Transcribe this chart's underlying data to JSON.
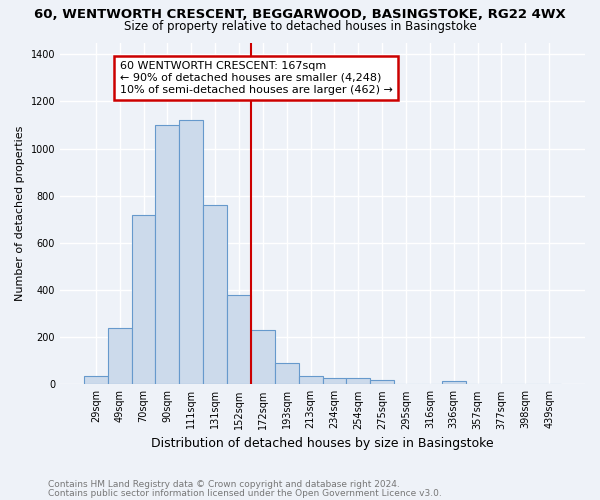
{
  "title1": "60, WENTWORTH CRESCENT, BEGGARWOOD, BASINGSTOKE, RG22 4WX",
  "title2": "Size of property relative to detached houses in Basingstoke",
  "xlabel": "Distribution of detached houses by size in Basingstoke",
  "ylabel": "Number of detached properties",
  "bar_color": "#ccdaeb",
  "bar_edge_color": "#6699cc",
  "categories": [
    "29sqm",
    "49sqm",
    "70sqm",
    "90sqm",
    "111sqm",
    "131sqm",
    "152sqm",
    "172sqm",
    "193sqm",
    "213sqm",
    "234sqm",
    "254sqm",
    "275sqm",
    "295sqm",
    "316sqm",
    "336sqm",
    "357sqm",
    "377sqm",
    "398sqm",
    "439sqm"
  ],
  "values": [
    35,
    240,
    720,
    1100,
    1120,
    760,
    380,
    230,
    90,
    35,
    25,
    25,
    20,
    0,
    0,
    15,
    0,
    0,
    0,
    0
  ],
  "vline_x": 7.0,
  "vline_color": "#cc0000",
  "annotation_line1": "60 WENTWORTH CRESCENT: 167sqm",
  "annotation_line2": "← 90% of detached houses are smaller (4,248)",
  "annotation_line3": "10% of semi-detached houses are larger (462) →",
  "annotation_box_color": "#ffffff",
  "annotation_box_edge": "#cc0000",
  "ylim": [
    0,
    1450
  ],
  "yticks": [
    0,
    200,
    400,
    600,
    800,
    1000,
    1200,
    1400
  ],
  "footnote1": "Contains HM Land Registry data © Crown copyright and database right 2024.",
  "footnote2": "Contains public sector information licensed under the Open Government Licence v3.0.",
  "bg_color": "#eef2f8",
  "grid_color": "#ffffff",
  "title1_fontsize": 9.5,
  "title2_fontsize": 8.5,
  "ylabel_fontsize": 8,
  "xlabel_fontsize": 9,
  "tick_fontsize": 7,
  "annot_fontsize": 8
}
